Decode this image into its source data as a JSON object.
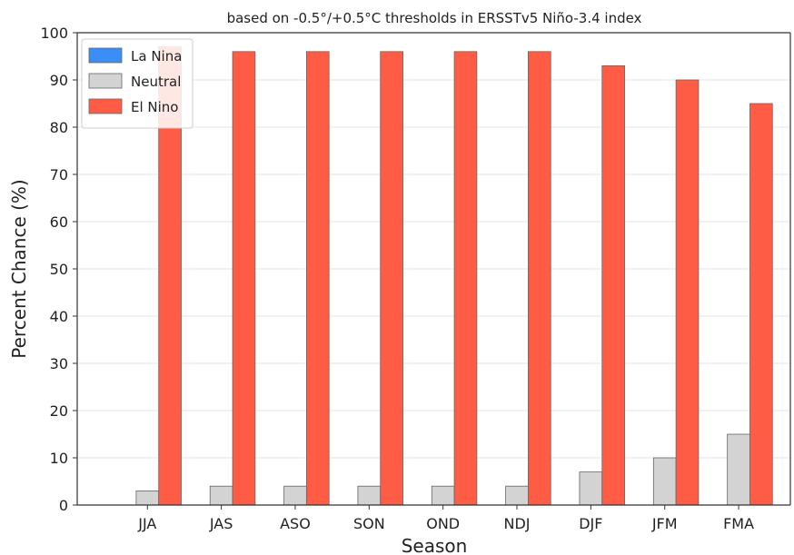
{
  "chart_data": {
    "type": "bar",
    "title": "based on -0.5°/+0.5°C thresholds in ERSSTv5 Niño-3.4 index",
    "xlabel": "Season",
    "ylabel": "Percent Chance (%)",
    "ylim": [
      0,
      100
    ],
    "yticks": [
      0,
      10,
      20,
      30,
      40,
      50,
      60,
      70,
      80,
      90,
      100
    ],
    "grid": "horizontal",
    "legend_position": "top-left",
    "categories": [
      "JJA",
      "JAS",
      "ASO",
      "SON",
      "OND",
      "NDJ",
      "DJF",
      "JFM",
      "FMA"
    ],
    "series": [
      {
        "name": "La Nina",
        "color": "#3a8ef6",
        "values": [
          0,
          0,
          0,
          0,
          0,
          0,
          0,
          0,
          0
        ]
      },
      {
        "name": "Neutral",
        "color": "#d3d3d3",
        "values": [
          3,
          4,
          4,
          4,
          4,
          4,
          7,
          10,
          15
        ]
      },
      {
        "name": "El Nino",
        "color": "#ff5c46",
        "values": [
          97,
          96,
          96,
          96,
          96,
          96,
          93,
          90,
          85
        ]
      }
    ]
  }
}
